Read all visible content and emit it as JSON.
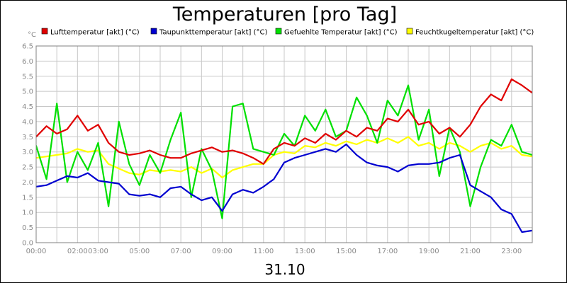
{
  "chart_data": {
    "type": "line",
    "title": "Temperaturen [pro Tag]",
    "date_label": "31.10",
    "y_unit": "°C",
    "ylim": [
      0,
      6.5
    ],
    "y_ticks": [
      "0.0",
      "0.5",
      "1.0",
      "1.5",
      "2.0",
      "2.5",
      "3.0",
      "3.5",
      "4.0",
      "4.5",
      "5.0",
      "5.5",
      "6.0",
      "6.5"
    ],
    "xlim": [
      0,
      24
    ],
    "x_ticks": [
      {
        "h": 0,
        "label": "00:00"
      },
      {
        "h": 2,
        "label": "02:00"
      },
      {
        "h": 3,
        "label": "03:00"
      },
      {
        "h": 5,
        "label": "05:00"
      },
      {
        "h": 7,
        "label": "07:00"
      },
      {
        "h": 9,
        "label": "09:00"
      },
      {
        "h": 11,
        "label": "11:00"
      },
      {
        "h": 13,
        "label": "13:00"
      },
      {
        "h": 15,
        "label": "15:00"
      },
      {
        "h": 17,
        "label": "17:00"
      },
      {
        "h": 19,
        "label": "19:00"
      },
      {
        "h": 21,
        "label": "21:00"
      },
      {
        "h": 23,
        "label": "23:00"
      }
    ],
    "grid": true,
    "legend_position": "top",
    "series": [
      {
        "name": "Lufttemperatur [akt] (°C)",
        "color": "#e00000",
        "x": [
          0,
          0.5,
          1,
          1.5,
          2,
          2.5,
          3,
          3.5,
          4,
          4.5,
          5,
          5.5,
          6,
          6.5,
          7,
          7.5,
          8,
          8.5,
          9,
          9.5,
          10,
          10.5,
          11,
          11.5,
          12,
          12.5,
          13,
          13.5,
          14,
          14.5,
          15,
          15.5,
          16,
          16.5,
          17,
          17.5,
          18,
          18.5,
          19,
          19.5,
          20,
          20.5,
          21,
          21.5,
          22,
          22.5,
          23,
          23.5,
          24
        ],
        "values": [
          3.5,
          3.85,
          3.6,
          3.75,
          4.2,
          3.7,
          3.9,
          3.3,
          3.0,
          2.9,
          2.95,
          3.05,
          2.9,
          2.8,
          2.8,
          2.95,
          3.05,
          3.15,
          3.0,
          3.05,
          2.95,
          2.8,
          2.6,
          3.1,
          3.3,
          3.2,
          3.45,
          3.3,
          3.6,
          3.4,
          3.7,
          3.5,
          3.8,
          3.7,
          4.1,
          4.0,
          4.4,
          3.9,
          4.0,
          3.6,
          3.8,
          3.5,
          3.9,
          4.5,
          4.9,
          4.7,
          5.4,
          5.2,
          4.95
        ]
      },
      {
        "name": "Taupunkttemperatur [akt] (°C)",
        "color": "#0000d0",
        "x": [
          0,
          0.5,
          1,
          1.5,
          2,
          2.5,
          3,
          3.5,
          4,
          4.5,
          5,
          5.5,
          6,
          6.5,
          7,
          7.5,
          8,
          8.5,
          9,
          9.5,
          10,
          10.5,
          11,
          11.5,
          12,
          12.5,
          13,
          13.5,
          14,
          14.5,
          15,
          15.5,
          16,
          16.5,
          17,
          17.5,
          18,
          18.5,
          19,
          19.5,
          20,
          20.5,
          21,
          21.5,
          22,
          22.5,
          23,
          23.5,
          24
        ],
        "values": [
          1.85,
          1.9,
          2.05,
          2.2,
          2.15,
          2.3,
          2.05,
          2.0,
          1.95,
          1.6,
          1.55,
          1.6,
          1.5,
          1.8,
          1.85,
          1.6,
          1.4,
          1.5,
          1.05,
          1.6,
          1.75,
          1.65,
          1.85,
          2.1,
          2.65,
          2.8,
          2.9,
          3.0,
          3.1,
          3.0,
          3.25,
          2.9,
          2.65,
          2.55,
          2.5,
          2.35,
          2.55,
          2.6,
          2.6,
          2.65,
          2.8,
          2.9,
          1.9,
          1.7,
          1.5,
          1.1,
          0.95,
          0.35,
          0.4
        ]
      },
      {
        "name": "Gefuehlte Temperatur [akt] (°C)",
        "color": "#00e000",
        "x": [
          0,
          0.5,
          1,
          1.5,
          2,
          2.5,
          3,
          3.5,
          4,
          4.5,
          5,
          5.5,
          6,
          6.5,
          7,
          7.5,
          8,
          8.5,
          9,
          9.5,
          10,
          10.5,
          11,
          11.5,
          12,
          12.5,
          13,
          13.5,
          14,
          14.5,
          15,
          15.5,
          16,
          16.5,
          17,
          17.5,
          18,
          18.5,
          19,
          19.5,
          20,
          20.5,
          21,
          21.5,
          22,
          22.5,
          23,
          23.5,
          24
        ],
        "values": [
          3.2,
          2.1,
          4.6,
          2.0,
          3.0,
          2.4,
          3.3,
          1.2,
          4.0,
          2.6,
          1.9,
          2.9,
          2.3,
          3.4,
          4.3,
          1.5,
          3.1,
          2.4,
          0.8,
          4.5,
          4.6,
          3.1,
          3.0,
          2.9,
          3.6,
          3.2,
          4.2,
          3.7,
          4.4,
          3.5,
          3.7,
          4.8,
          4.2,
          3.3,
          4.7,
          4.2,
          5.2,
          3.4,
          4.4,
          2.2,
          3.8,
          3.0,
          1.2,
          2.5,
          3.4,
          3.2,
          3.9,
          3.0,
          2.9
        ]
      },
      {
        "name": "Feuchtkugeltemperatur [akt] (°C)",
        "color": "#ffff00",
        "x": [
          0,
          0.5,
          1,
          1.5,
          2,
          2.5,
          3,
          3.5,
          4,
          4.5,
          5,
          5.5,
          6,
          6.5,
          7,
          7.5,
          8,
          8.5,
          9,
          9.5,
          10,
          10.5,
          11,
          11.5,
          12,
          12.5,
          13,
          13.5,
          14,
          14.5,
          15,
          15.5,
          16,
          16.5,
          17,
          17.5,
          18,
          18.5,
          19,
          19.5,
          20,
          20.5,
          21,
          21.5,
          22,
          22.5,
          23,
          23.5,
          24
        ],
        "values": [
          2.8,
          2.85,
          2.9,
          2.95,
          3.1,
          3.0,
          3.05,
          2.6,
          2.45,
          2.3,
          2.25,
          2.4,
          2.35,
          2.4,
          2.35,
          2.5,
          2.3,
          2.45,
          2.15,
          2.4,
          2.5,
          2.6,
          2.6,
          2.9,
          3.0,
          2.95,
          3.2,
          3.15,
          3.3,
          3.2,
          3.35,
          3.25,
          3.4,
          3.3,
          3.45,
          3.3,
          3.5,
          3.2,
          3.3,
          3.1,
          3.3,
          3.2,
          3.0,
          3.2,
          3.3,
          3.1,
          3.2,
          2.9,
          2.85
        ]
      }
    ]
  }
}
